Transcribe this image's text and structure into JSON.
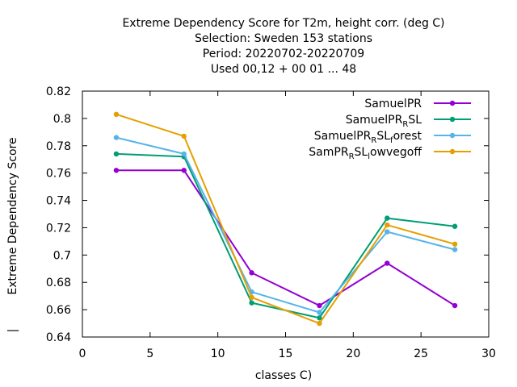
{
  "chart_data": {
    "type": "line",
    "title_lines": [
      "Extreme Dependency Score  for T2m, height corr. (deg C)",
      "Selection: Sweden    153 stations",
      "Period: 20220702-20220709",
      "Used  00,12  + 00 01 ... 48"
    ],
    "xlabel": "classes C)",
    "ylabel": "Extreme Dependency Score",
    "ylabel_extra": "|",
    "xlim": [
      0,
      30
    ],
    "ylim": [
      0.64,
      0.82
    ],
    "xticks": [
      0,
      5,
      10,
      15,
      20,
      25,
      30
    ],
    "xtick_labels": [
      "0",
      "5",
      "10",
      "15",
      "20",
      "25",
      "30"
    ],
    "yticks": [
      0.64,
      0.66,
      0.68,
      0.7,
      0.72,
      0.74,
      0.76,
      0.78,
      0.8,
      0.82
    ],
    "ytick_labels": [
      "0.64",
      "0.66",
      "0.68",
      "0.7",
      "0.72",
      "0.74",
      "0.76",
      "0.78",
      "0.8",
      "0.82"
    ],
    "grid": false,
    "legend_position": "top-right",
    "x": [
      2.5,
      7.5,
      12.5,
      17.5,
      22.5,
      27.5
    ],
    "series": [
      {
        "name": "SamuelPR",
        "legend_main": "SamuelPR",
        "legend_sub": "",
        "legend_tail": "",
        "color": "#9400d3",
        "values": [
          0.762,
          0.762,
          0.687,
          0.663,
          0.694,
          0.663
        ]
      },
      {
        "name": "SamuelPR_RSL",
        "legend_main": "SamuelPR",
        "legend_sub": "R",
        "legend_tail": "SL",
        "color": "#009e73",
        "values": [
          0.774,
          0.772,
          0.665,
          0.654,
          0.727,
          0.721
        ]
      },
      {
        "name": "SamuelPR_RSL_forest",
        "legend_main": "SamuelPR",
        "legend_sub": "R",
        "legend_tail": "SL",
        "legend_sub2": "f",
        "legend_tail2": "orest",
        "color": "#56b4e9",
        "values": [
          0.786,
          0.774,
          0.673,
          0.658,
          0.717,
          0.704
        ]
      },
      {
        "name": "SamPR_RSL_lowvegoff",
        "legend_main": "SamPR",
        "legend_sub": "R",
        "legend_tail": "SL",
        "legend_sub2": "l",
        "legend_tail2": "owvegoff",
        "color": "#e69f00",
        "values": [
          0.803,
          0.787,
          0.669,
          0.65,
          0.722,
          0.708
        ]
      }
    ]
  }
}
